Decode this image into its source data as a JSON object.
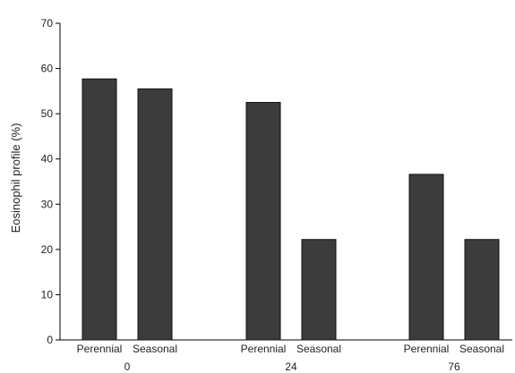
{
  "chart_data": {
    "type": "bar",
    "title": "",
    "xlabel": "",
    "ylabel": "Eosinophil profile (%)",
    "ylim": [
      0,
      70
    ],
    "yticks": [
      0,
      10,
      20,
      30,
      40,
      50,
      60,
      70
    ],
    "grid": false,
    "bar_color": "#3c3c3c",
    "groups": [
      {
        "label": "0",
        "bars": [
          {
            "category": "Perennial",
            "value": 57.7
          },
          {
            "category": "Seasonal",
            "value": 55.5
          }
        ]
      },
      {
        "label": "24",
        "bars": [
          {
            "category": "Perennial",
            "value": 52.5
          },
          {
            "category": "Seasonal",
            "value": 22.2
          }
        ]
      },
      {
        "label": "76",
        "bars": [
          {
            "category": "Perennial",
            "value": 36.6
          },
          {
            "category": "Seasonal",
            "value": 22.2
          }
        ]
      }
    ]
  }
}
